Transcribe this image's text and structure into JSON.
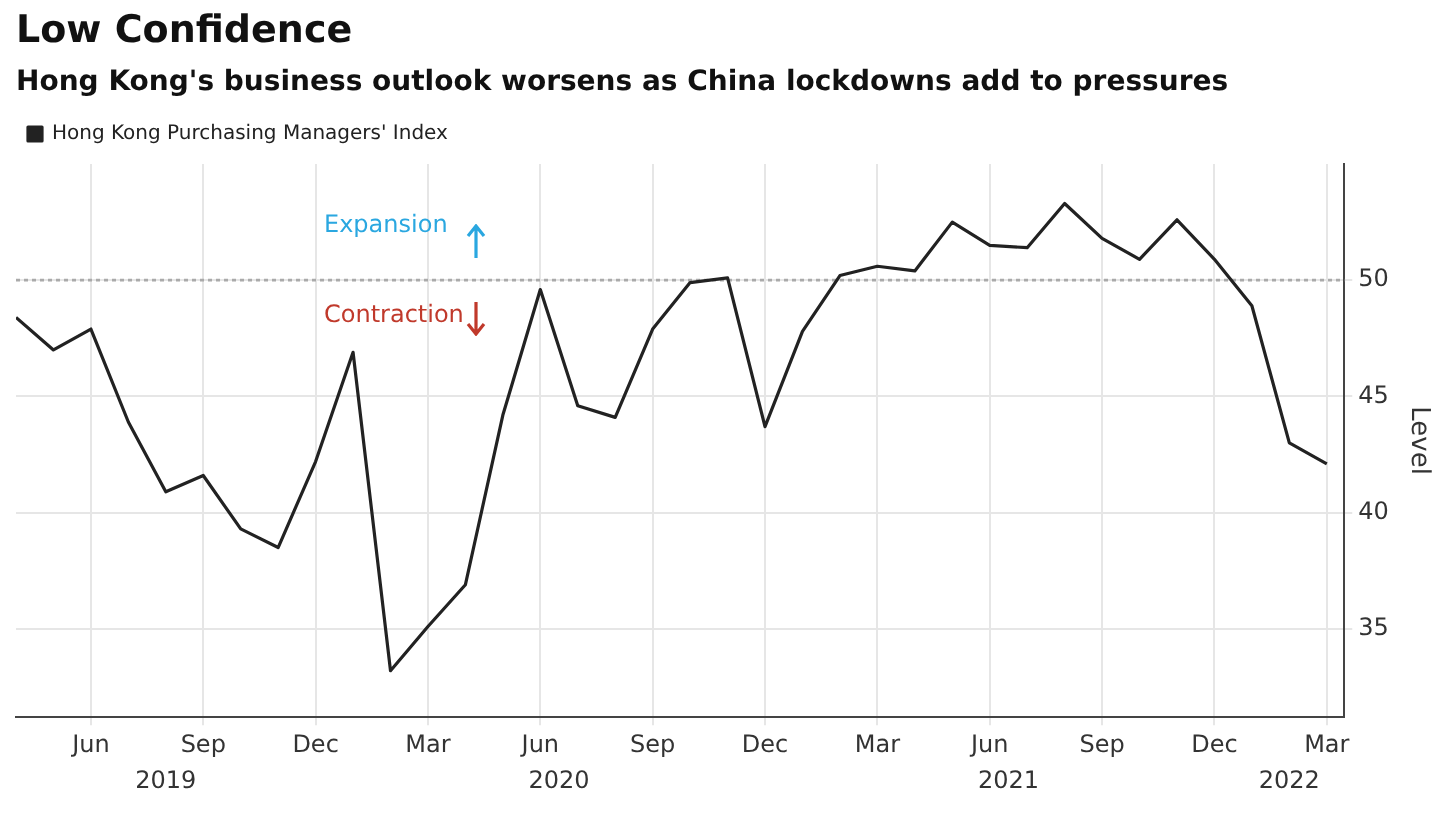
{
  "chart_data": {
    "type": "line",
    "title": "Low Confidence",
    "subtitle": "Hong Kong's business outlook worsens as China lockdowns add to pressures",
    "ylabel": "Level",
    "x": [
      "2019-04",
      "2019-05",
      "2019-06",
      "2019-07",
      "2019-08",
      "2019-09",
      "2019-10",
      "2019-11",
      "2019-12",
      "2020-01",
      "2020-02",
      "2020-03",
      "2020-04",
      "2020-05",
      "2020-06",
      "2020-07",
      "2020-08",
      "2020-09",
      "2020-10",
      "2020-11",
      "2020-12",
      "2021-01",
      "2021-02",
      "2021-03",
      "2021-04",
      "2021-05",
      "2021-06",
      "2021-07",
      "2021-08",
      "2021-09",
      "2021-10",
      "2021-11",
      "2021-12",
      "2022-01",
      "2022-02",
      "2022-03"
    ],
    "series": [
      {
        "name": "Hong Kong Purchasing Managers' Index",
        "color": "#222222",
        "values": [
          48.4,
          47.0,
          47.9,
          43.9,
          40.9,
          41.6,
          39.3,
          38.5,
          42.2,
          46.9,
          33.2,
          35.1,
          36.9,
          44.2,
          49.6,
          44.6,
          44.1,
          47.9,
          49.9,
          50.1,
          43.7,
          47.8,
          50.2,
          50.6,
          50.4,
          52.5,
          51.5,
          51.4,
          53.3,
          51.8,
          50.9,
          52.6,
          50.9,
          48.9,
          43.0,
          42.1
        ]
      }
    ],
    "xlim": [
      "2019-04",
      "2022-03-15"
    ],
    "xticks": [
      {
        "value": "2019-06",
        "label": "Jun"
      },
      {
        "value": "2019-09",
        "label": "Sep"
      },
      {
        "value": "2019-12",
        "label": "Dec"
      },
      {
        "value": "2020-03",
        "label": "Mar"
      },
      {
        "value": "2020-06",
        "label": "Jun"
      },
      {
        "value": "2020-09",
        "label": "Sep"
      },
      {
        "value": "2020-12",
        "label": "Dec"
      },
      {
        "value": "2021-03",
        "label": "Mar"
      },
      {
        "value": "2021-06",
        "label": "Jun"
      },
      {
        "value": "2021-09",
        "label": "Sep"
      },
      {
        "value": "2021-12",
        "label": "Dec"
      },
      {
        "value": "2022-03",
        "label": "Mar"
      }
    ],
    "ylim": [
      31.2,
      55
    ],
    "yticks": [
      35,
      40,
      45,
      50
    ],
    "ref_lines": [
      {
        "axis": "y",
        "value": 50,
        "color": "#aaaaaa",
        "line_style": "dotted"
      }
    ],
    "annotations": [
      "Expansion",
      "Contraction",
      "2019",
      "2020",
      "2021",
      "2022"
    ],
    "grid": true,
    "legend": "top left",
    "marker": "none",
    "line_style": "solid"
  }
}
